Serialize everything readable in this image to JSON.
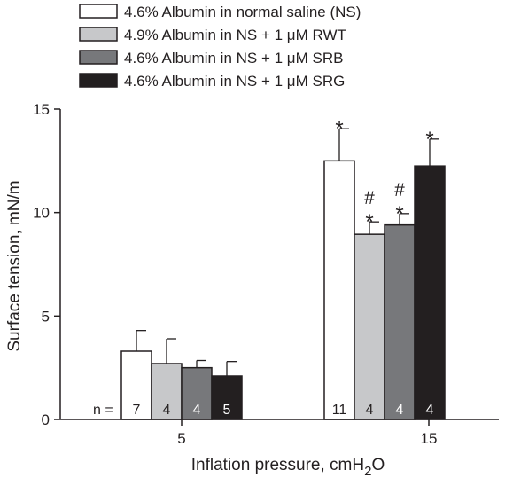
{
  "chart_data": {
    "type": "bar",
    "title": "",
    "xlabel_main": "Inflation pressure, cmH",
    "xlabel_sub": "2",
    "xlabel_tail": "O",
    "ylabel": "Surface tension, mN/m",
    "ylim": [
      0,
      15
    ],
    "yticks": [
      0,
      5,
      10,
      15
    ],
    "categories": [
      "5",
      "15"
    ],
    "n_prefix": "n =",
    "series": [
      {
        "name": "4.6% Albumin in normal saline (NS)",
        "color": "#ffffff",
        "values": [
          3.3,
          12.5
        ],
        "errors": [
          1.0,
          1.55
        ],
        "n": [
          "7",
          "11"
        ],
        "n_color": "#231f20",
        "annotations": [
          "",
          "*"
        ]
      },
      {
        "name": "4.9% Albumin in NS + 1 μM RWT",
        "color": "#c7c8ca",
        "values": [
          2.7,
          8.95
        ],
        "errors": [
          1.2,
          0.6
        ],
        "n": [
          "4",
          "4"
        ],
        "n_color": "#231f20",
        "annotations": [
          "",
          "#*"
        ]
      },
      {
        "name": "4.6% Albumin in NS + 1 μM SRB",
        "color": "#77787b",
        "values": [
          2.5,
          9.4
        ],
        "errors": [
          0.35,
          0.55
        ],
        "n": [
          "4",
          "4"
        ],
        "n_color": "#ffffff",
        "annotations": [
          "",
          "#*"
        ]
      },
      {
        "name": "4.6% Albumin in NS + 1 μM SRG",
        "color": "#231f20",
        "values": [
          2.1,
          12.25
        ],
        "errors": [
          0.7,
          1.3
        ],
        "n": [
          "5",
          "4"
        ],
        "n_color": "#ffffff",
        "annotations": [
          "",
          "*"
        ]
      }
    ],
    "legend_position": "top-left",
    "grid": false
  }
}
